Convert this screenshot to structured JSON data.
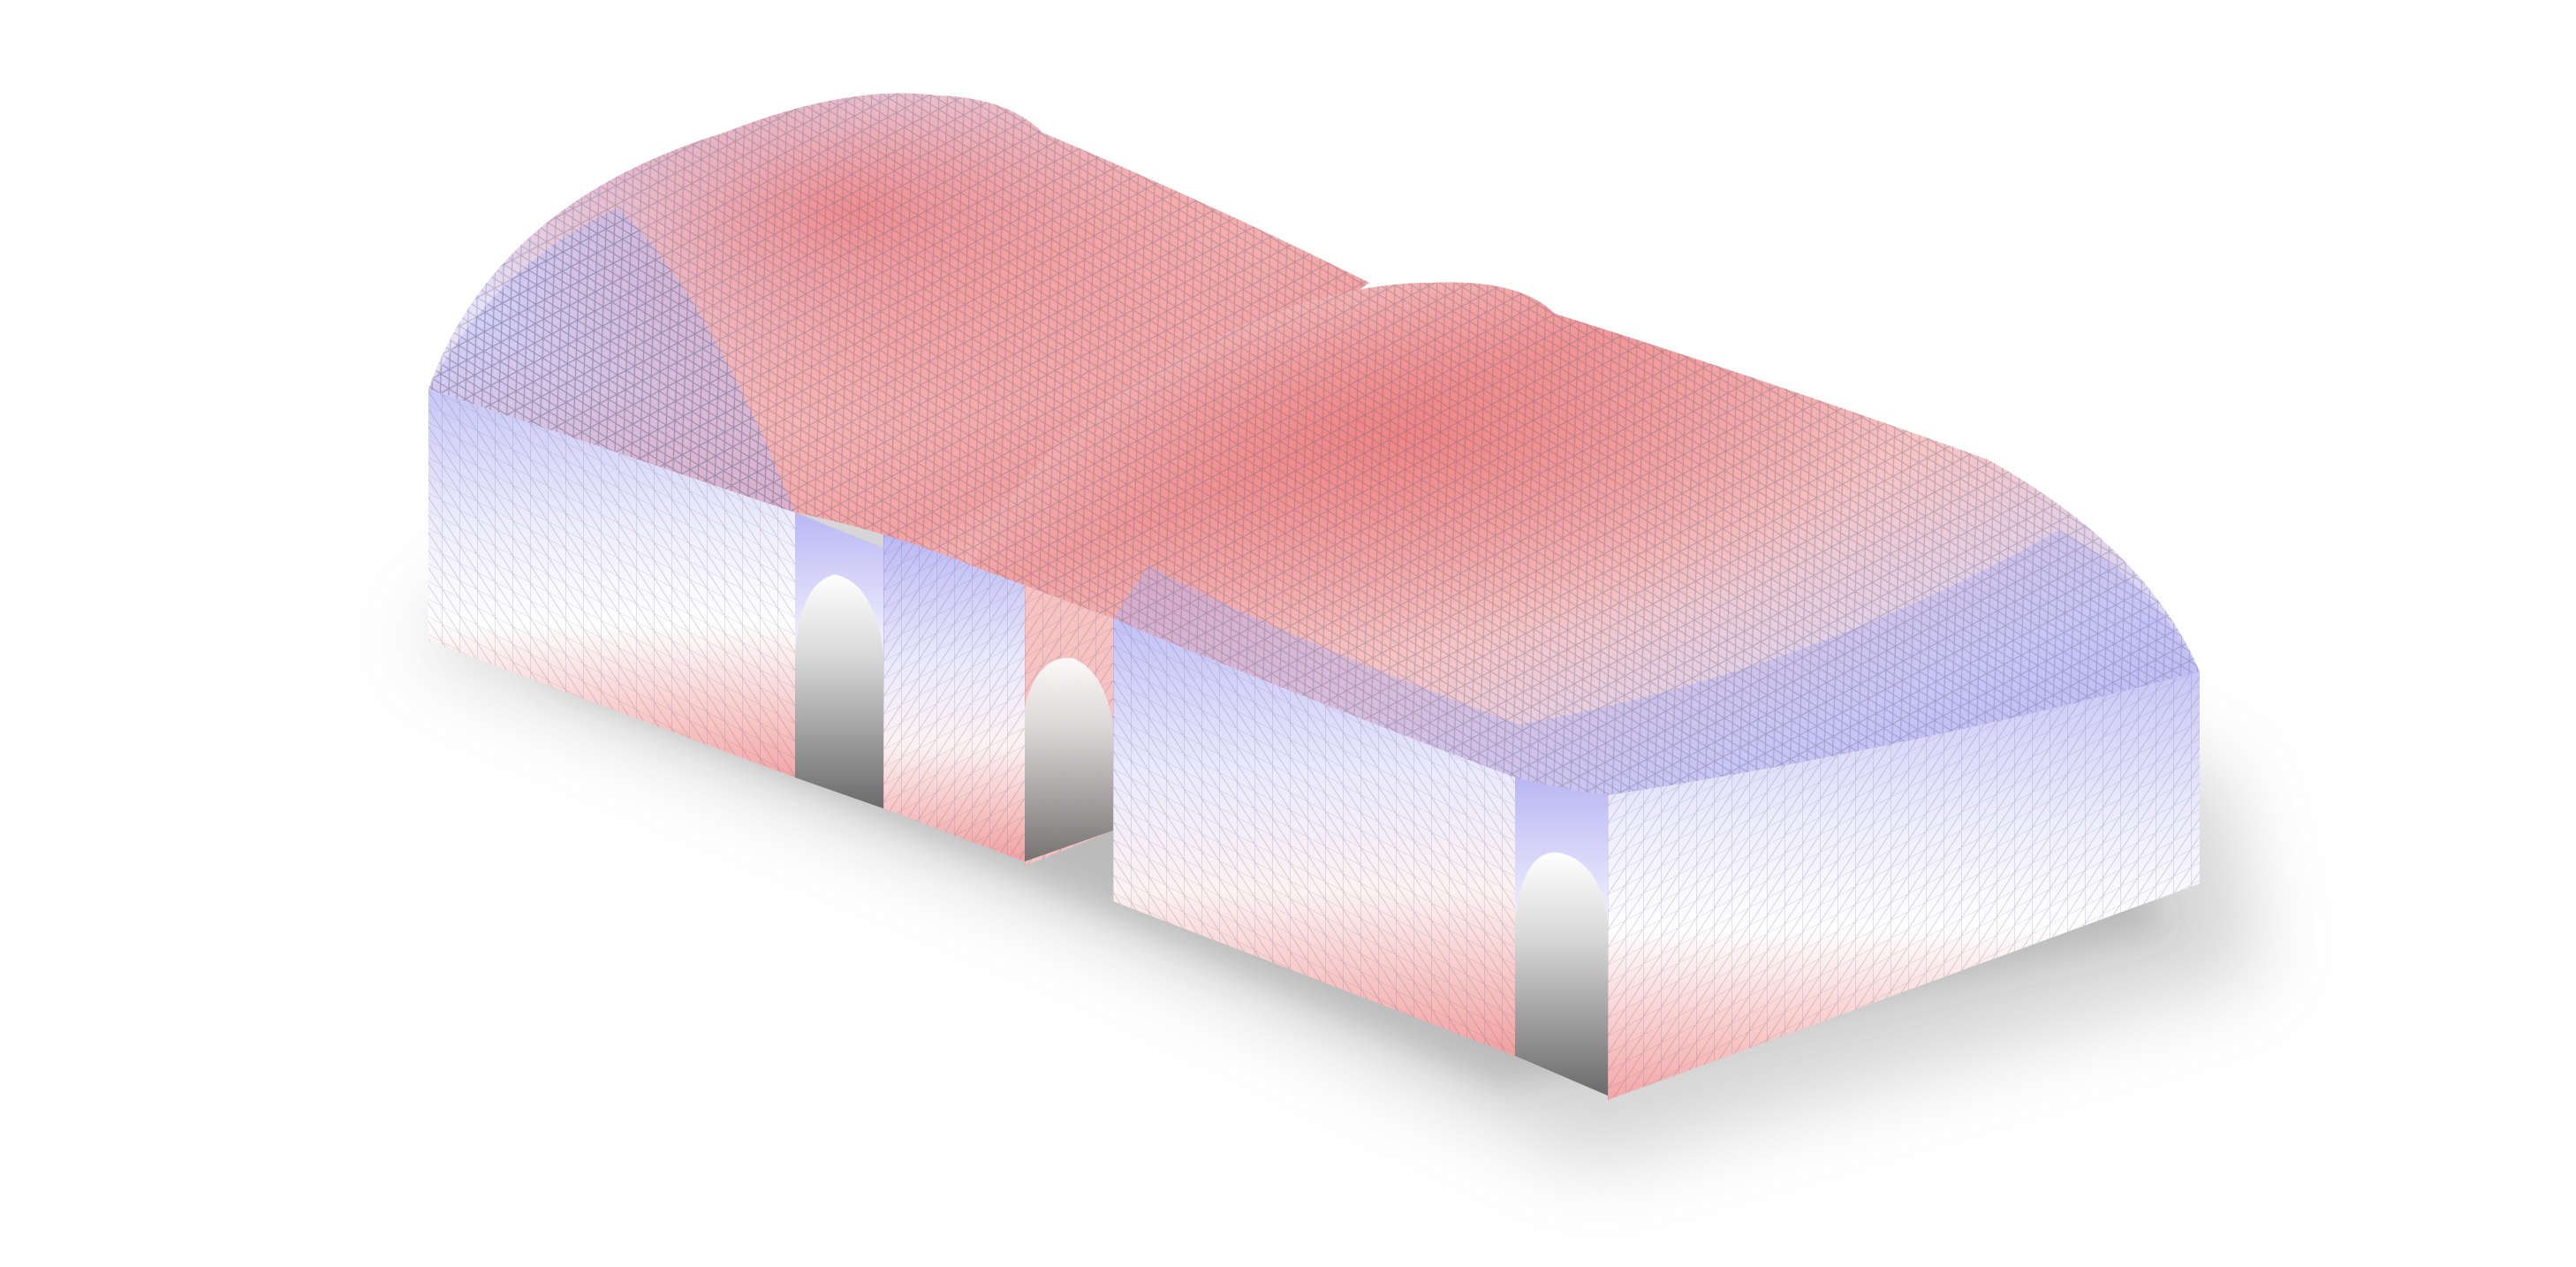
{
  "scene": {
    "subject": "",
    "colors": {
      "background": "#ffffff",
      "high": "#f08a8a",
      "neutral": "#ffffff",
      "low": "#a9a8f0",
      "mesh_line": "#4a4a6a",
      "shadow": "#8a8a8a",
      "opening": "#6f6f6f"
    }
  }
}
